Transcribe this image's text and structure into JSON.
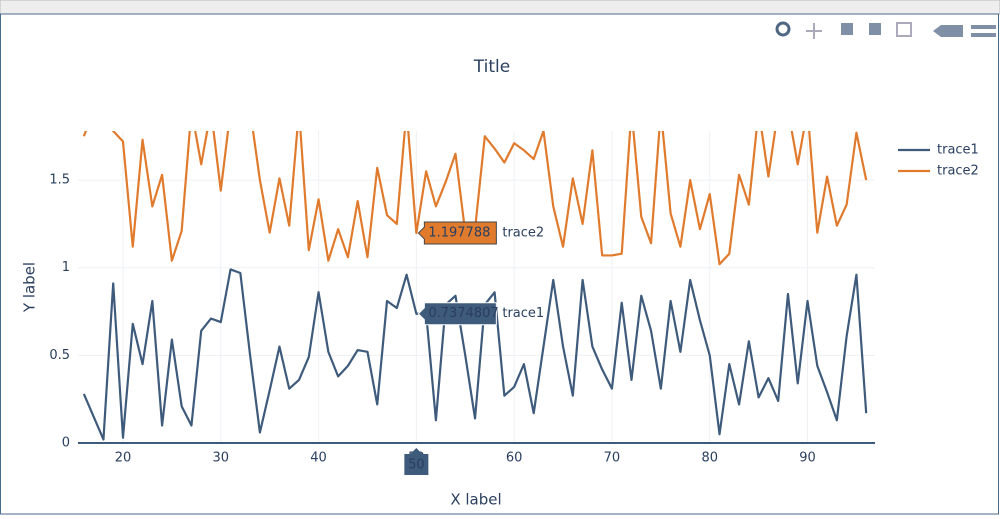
{
  "chart_data": {
    "type": "line",
    "title": "Title",
    "x_label": "X label",
    "y_label": "Y label",
    "x": [
      16,
      17,
      18,
      19,
      20,
      21,
      22,
      23,
      24,
      25,
      26,
      27,
      28,
      29,
      30,
      31,
      32,
      33,
      34,
      35,
      36,
      37,
      38,
      39,
      40,
      41,
      42,
      43,
      44,
      45,
      46,
      47,
      48,
      49,
      50,
      51,
      52,
      53,
      54,
      55,
      56,
      57,
      58,
      59,
      60,
      61,
      62,
      63,
      64,
      65,
      66,
      67,
      68,
      69,
      70,
      71,
      72,
      73,
      74,
      75,
      76,
      77,
      78,
      79,
      80,
      81,
      82,
      83,
      84,
      85,
      86,
      87,
      88,
      89,
      90,
      91,
      92,
      93,
      94,
      95,
      96
    ],
    "series": [
      {
        "name": "trace1",
        "color": "#3f5b7c",
        "values": [
          0.28,
          0.15,
          0.02,
          0.91,
          0.03,
          0.68,
          0.45,
          0.81,
          0.1,
          0.59,
          0.21,
          0.1,
          0.64,
          0.71,
          0.69,
          0.99,
          0.97,
          0.5,
          0.06,
          0.3,
          0.55,
          0.31,
          0.36,
          0.49,
          0.86,
          0.52,
          0.38,
          0.44,
          0.53,
          0.52,
          0.22,
          0.81,
          0.77,
          0.96,
          0.7374807,
          0.74,
          0.13,
          0.79,
          0.84,
          0.5,
          0.14,
          0.79,
          0.86,
          0.27,
          0.32,
          0.45,
          0.17,
          0.55,
          0.93,
          0.55,
          0.27,
          0.93,
          0.55,
          0.42,
          0.31,
          0.8,
          0.36,
          0.84,
          0.64,
          0.31,
          0.81,
          0.52,
          0.93,
          0.7,
          0.5,
          0.05,
          0.45,
          0.22,
          0.58,
          0.26,
          0.37,
          0.24,
          0.85,
          0.34,
          0.81,
          0.44,
          0.29,
          0.13,
          0.61,
          0.96,
          0.17
        ]
      },
      {
        "name": "trace2",
        "color": "#e07b2e",
        "values": [
          1.75,
          1.9,
          1.9,
          1.78,
          1.72,
          1.12,
          1.73,
          1.35,
          1.53,
          1.04,
          1.21,
          1.9,
          1.59,
          1.9,
          1.44,
          1.9,
          1.9,
          1.9,
          1.5,
          1.2,
          1.51,
          1.24,
          1.9,
          1.1,
          1.39,
          1.04,
          1.22,
          1.06,
          1.38,
          1.06,
          1.57,
          1.3,
          1.25,
          1.9,
          1.197788,
          1.55,
          1.35,
          1.49,
          1.65,
          1.2,
          1.22,
          1.75,
          1.68,
          1.6,
          1.71,
          1.67,
          1.62,
          1.78,
          1.35,
          1.12,
          1.51,
          1.25,
          1.67,
          1.07,
          1.07,
          1.08,
          1.9,
          1.29,
          1.14,
          1.9,
          1.31,
          1.12,
          1.5,
          1.22,
          1.42,
          1.02,
          1.08,
          1.53,
          1.36,
          1.9,
          1.52,
          1.9,
          1.9,
          1.59,
          1.9,
          1.2,
          1.52,
          1.24,
          1.36,
          1.77,
          1.5
        ]
      }
    ],
    "xlim": [
      15.4,
      96.9
    ],
    "ylim": [
      0,
      1.78
    ],
    "xticks": [
      20,
      30,
      40,
      50,
      60,
      70,
      80,
      90
    ],
    "yticks": [
      0,
      0.5,
      1,
      1.5
    ],
    "grid": true,
    "hover": {
      "x": 50,
      "labels": [
        {
          "series": 0,
          "value": 0.7374807
        },
        {
          "series": 1,
          "value": 1.197788
        }
      ]
    }
  }
}
